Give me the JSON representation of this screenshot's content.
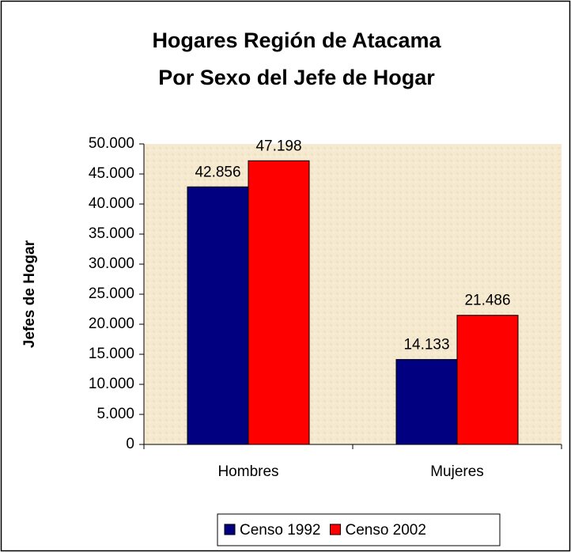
{
  "chart_data": {
    "type": "bar",
    "title": "Hogares Región de Atacama",
    "subtitle": "Por Sexo del Jefe de Hogar",
    "y_label": "Jefes de Hogar",
    "categories": [
      "Hombres",
      "Mujeres"
    ],
    "series": [
      {
        "name": "Censo 1992",
        "color": "#000080",
        "values": [
          42856,
          14133
        ],
        "value_labels": [
          "42.856",
          "14.133"
        ]
      },
      {
        "name": "Censo 2002",
        "color": "#ff0000",
        "values": [
          47198,
          21486
        ],
        "value_labels": [
          "47.198",
          "21.486"
        ]
      }
    ],
    "ylim": [
      0,
      50000
    ],
    "yticks": [
      0,
      {
        "value": 5000,
        "label": "5.000"
      },
      {
        "value": 10000,
        "label": "10.000"
      },
      {
        "value": 15000,
        "label": "15.000"
      },
      {
        "value": 20000,
        "label": "20.000"
      },
      {
        "value": 25000,
        "label": "25.000"
      },
      {
        "value": 30000,
        "label": "30.000"
      },
      {
        "value": 35000,
        "label": "35.000"
      },
      {
        "value": 40000,
        "label": "40.000"
      },
      {
        "value": 45000,
        "label": "45.000"
      },
      {
        "value": 50000,
        "label": "50.000"
      }
    ],
    "legend": "bottom"
  }
}
